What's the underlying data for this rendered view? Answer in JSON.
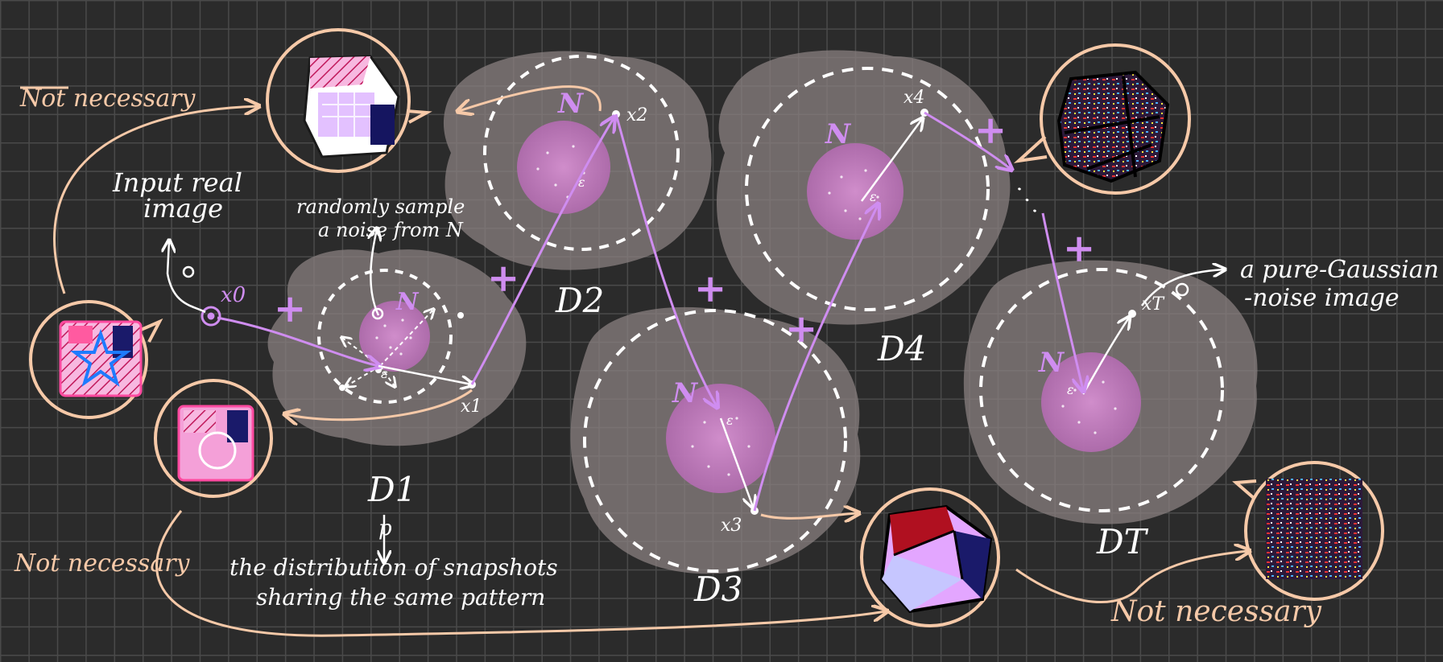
{
  "annotations": {
    "not_necessary_top": "Not necessary",
    "not_necessary_left": "Not necessary",
    "not_necessary_bottom": "Not necessary",
    "input_real_image_line1": "Input real",
    "input_real_image_line2": "image",
    "randomly_sample_line1": "randomly sample",
    "randomly_sample_line2": "a noise from N",
    "distribution_line1": "the distribution of snapshots",
    "distribution_line2": "sharing the same pattern",
    "p_label": "p",
    "pure_gaussian_line1": "a pure-Gaussian",
    "pure_gaussian_line2": "-noise image"
  },
  "nodes": {
    "x0": "x0",
    "x1": "x1",
    "x2": "x2",
    "x3": "x3",
    "x4": "x4",
    "xT": "xT",
    "eps": "ε",
    "noise_label": "N",
    "plus": "+",
    "ellipsis": "· · ·"
  },
  "distributions": {
    "D1": "D1",
    "D2": "D2",
    "D3": "D3",
    "D4": "D4",
    "DT": "DT"
  },
  "colors": {
    "background": "#2b2b2b",
    "grid": "#4a4a4a",
    "cloud": "#8a8080",
    "noise_blob": "#c478c0",
    "trajectory": "#cf8df0",
    "annotation": "#f6c9a8",
    "bubble": "#f6c9a8",
    "text": "#ffffff"
  },
  "icons": [
    "star-image-icon",
    "snapshot-image-icon",
    "noise-image-icon"
  ]
}
